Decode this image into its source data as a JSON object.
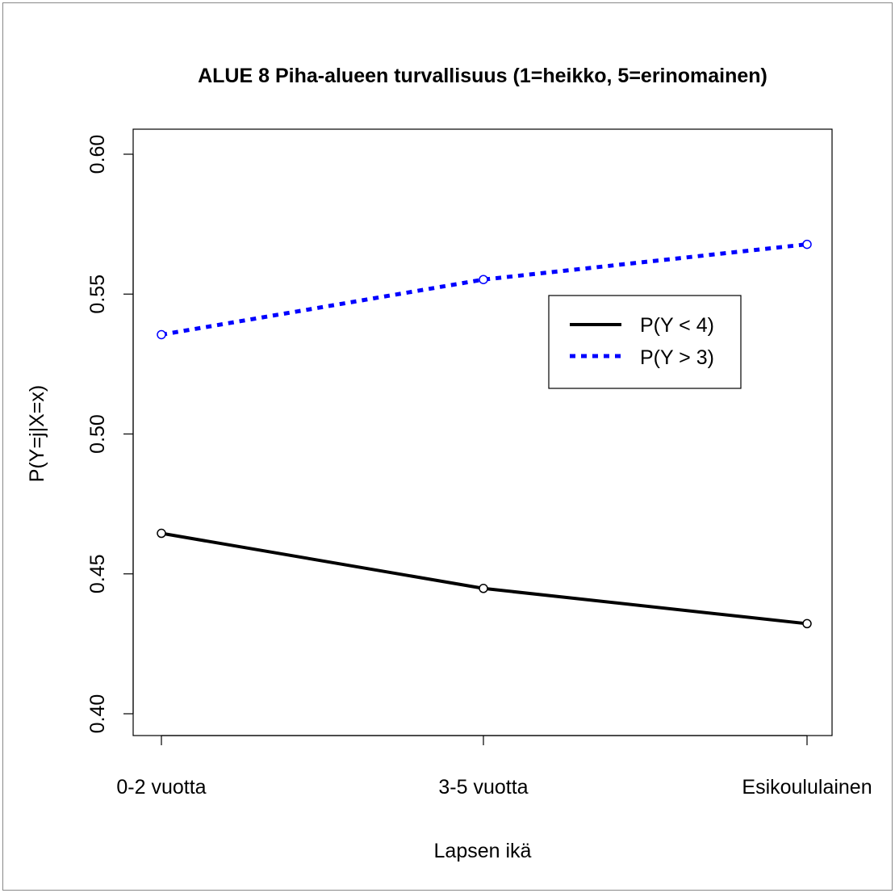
{
  "chart_data": {
    "type": "line",
    "title": "ALUE 8 Piha-alueen turvallisuus (1=heikko, 5=erinomainen)",
    "xlabel": "Lapsen ikä",
    "ylabel": "P(Y=j|X=x)",
    "categories": [
      "0-2 vuotta",
      "3-5 vuotta",
      "Esikoululainen"
    ],
    "ylim": [
      0.4,
      0.6
    ],
    "yticks": [
      "0.40",
      "0.45",
      "0.50",
      "0.55",
      "0.60"
    ],
    "series": [
      {
        "name": "P(Y < 4)",
        "values": [
          0.4645,
          0.4448,
          0.4322
        ],
        "color": "#000000",
        "style": "solid"
      },
      {
        "name": "P(Y > 3)",
        "values": [
          0.5355,
          0.5552,
          0.5678
        ],
        "color": "#0000ff",
        "style": "dotted"
      }
    ],
    "legend": "top-right",
    "grid": false
  }
}
